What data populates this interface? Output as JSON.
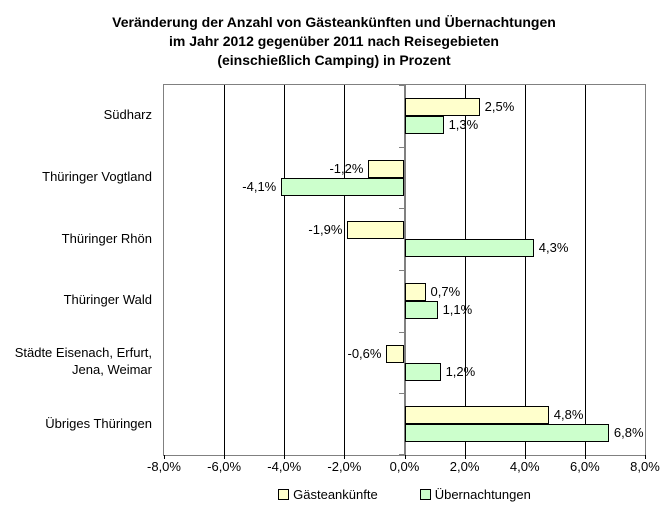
{
  "chart_data": {
    "type": "bar",
    "orientation": "horizontal",
    "title_lines": [
      "Veränderung der Anzahl von Gästeankünften und Übernachtungen",
      "im Jahr 2012 gegenüber 2011 nach Reisegebieten",
      "(einschießlich Camping) in Prozent"
    ],
    "categories": [
      "Südharz",
      "Thüringer Vogtland",
      "Thüringer Rhön",
      "Thüringer Wald",
      "Städte Eisenach, Erfurt,\nJena, Weimar",
      "Übriges Thüringen"
    ],
    "series": [
      {
        "name": "Gästeankünfte",
        "color": "#FFFFCC",
        "values": [
          2.5,
          -1.2,
          -1.9,
          0.7,
          -0.6,
          4.8
        ],
        "labels": [
          "2,5%",
          "-1,2%",
          "-1,9%",
          "0,7%",
          "-0,6%",
          "4,8%"
        ]
      },
      {
        "name": "Übernachtungen",
        "color": "#CCFFCC",
        "values": [
          1.3,
          -4.1,
          4.3,
          1.1,
          1.2,
          6.8
        ],
        "labels": [
          "1,3%",
          "-4,1%",
          "4,3%",
          "1,1%",
          "1,2%",
          "6,8%"
        ]
      }
    ],
    "x_axis": {
      "min": -8,
      "max": 8,
      "tick_step": 2,
      "tick_labels": [
        "-8,0%",
        "-6,0%",
        "-4,0%",
        "-2,0%",
        "0,0%",
        "2,0%",
        "4,0%",
        "6,0%",
        "8,0%"
      ]
    },
    "legend_position": "bottom",
    "grid": true,
    "colors": {
      "bar_border": "#000000",
      "plot_border": "#808080",
      "gridline": "#000000",
      "zero_axis": "#808080",
      "text": "#000000",
      "background": "#FFFFFF"
    }
  }
}
